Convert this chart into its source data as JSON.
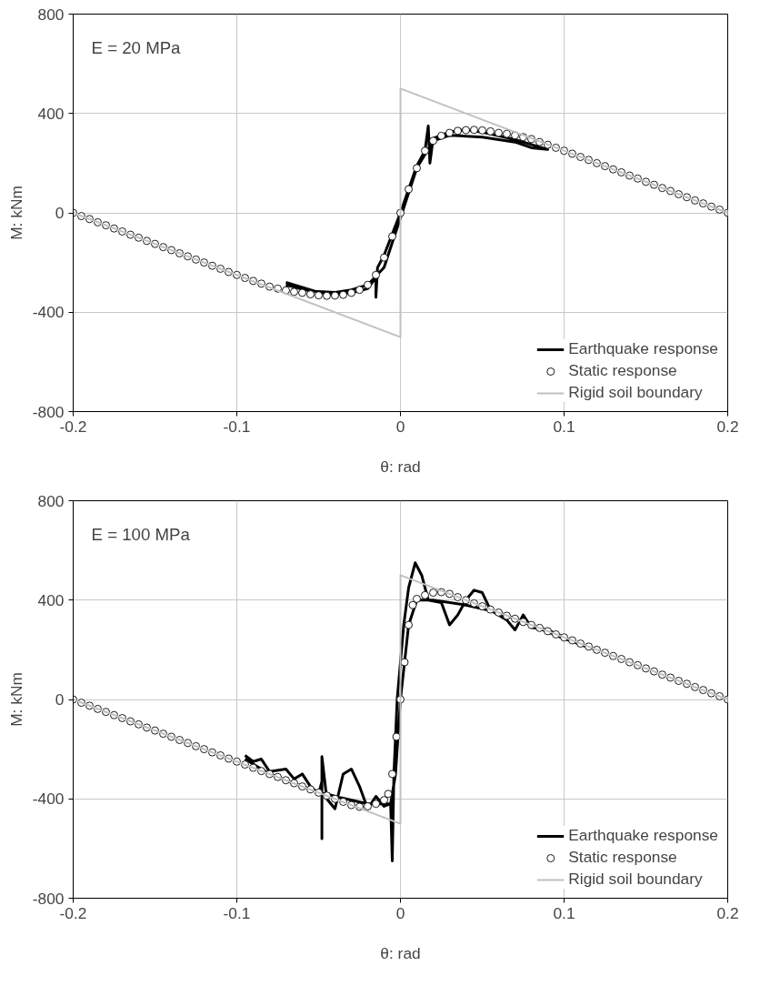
{
  "chart_data": [
    {
      "type": "line",
      "xlabel": "θ: rad",
      "ylabel": "M: kNm",
      "annotations": [
        "E = 20 MPa"
      ],
      "xlim": [
        -0.2,
        0.2
      ],
      "xticks": [
        -0.2,
        -0.1,
        0,
        0.1,
        0.2
      ],
      "ylim": [
        -800,
        800
      ],
      "yticks": [
        -800,
        -400,
        0,
        400,
        800
      ],
      "grid": true,
      "legend": "bottom right",
      "series": [
        {
          "name": "Earthquake response",
          "color": "#000000",
          "x": [
            -0.07,
            -0.065,
            -0.06,
            -0.05,
            -0.04,
            -0.03,
            -0.02,
            -0.015,
            -0.015,
            -0.014,
            -0.01,
            0,
            0.01,
            0.015,
            0.017,
            0.018,
            0.02,
            0.03,
            0.04,
            0.05,
            0.06,
            0.07,
            0.08,
            0.09,
            0.08,
            0.07,
            0.05,
            0.03,
            0.02,
            0.01,
            0,
            -0.01,
            -0.02,
            -0.03,
            -0.04,
            -0.055,
            -0.07
          ],
          "values": [
            -280,
            -290,
            -300,
            -320,
            -330,
            -322,
            -305,
            -260,
            -340,
            -220,
            -170,
            0,
            190,
            250,
            350,
            200,
            300,
            325,
            335,
            325,
            310,
            295,
            275,
            255,
            262,
            285,
            305,
            312,
            290,
            180,
            -20,
            -220,
            -290,
            -310,
            -320,
            -315,
            -290
          ]
        },
        {
          "name": "Static response",
          "type": "scatter",
          "marker": "circle",
          "color": "#000000",
          "x": [
            -0.2,
            -0.195,
            -0.19,
            -0.185,
            -0.18,
            -0.175,
            -0.17,
            -0.165,
            -0.16,
            -0.155,
            -0.15,
            -0.145,
            -0.14,
            -0.135,
            -0.13,
            -0.125,
            -0.12,
            -0.115,
            -0.11,
            -0.105,
            -0.1,
            -0.095,
            -0.09,
            -0.085,
            -0.08,
            -0.075,
            -0.07,
            -0.065,
            -0.06,
            -0.055,
            -0.05,
            -0.045,
            -0.04,
            -0.035,
            -0.03,
            -0.025,
            -0.02,
            -0.015,
            -0.01,
            -0.005,
            0,
            0.005,
            0.01,
            0.015,
            0.02,
            0.025,
            0.03,
            0.035,
            0.04,
            0.045,
            0.05,
            0.055,
            0.06,
            0.065,
            0.07,
            0.075,
            0.08,
            0.085,
            0.09,
            0.095,
            0.1,
            0.105,
            0.11,
            0.115,
            0.12,
            0.125,
            0.13,
            0.135,
            0.14,
            0.145,
            0.15,
            0.155,
            0.16,
            0.165,
            0.17,
            0.175,
            0.18,
            0.185,
            0.19,
            0.195,
            0.2
          ],
          "values": [
            0,
            -13,
            -25,
            -38,
            -50,
            -63,
            -75,
            -88,
            -100,
            -113,
            -125,
            -138,
            -150,
            -163,
            -175,
            -188,
            -200,
            -213,
            -225,
            -238,
            -250,
            -262,
            -274,
            -285,
            -297,
            -305,
            -312,
            -318,
            -322,
            -328,
            -332,
            -334,
            -333,
            -330,
            -322,
            -310,
            -290,
            -250,
            -180,
            -95,
            0,
            95,
            180,
            250,
            290,
            310,
            322,
            330,
            333,
            334,
            332,
            328,
            322,
            318,
            312,
            305,
            297,
            285,
            274,
            262,
            250,
            238,
            225,
            213,
            200,
            188,
            175,
            163,
            150,
            138,
            125,
            113,
            100,
            88,
            75,
            63,
            50,
            38,
            25,
            13,
            0
          ]
        },
        {
          "name": "Rigid soil boundary",
          "color": "#c0c0c0",
          "x": [
            -0.2,
            0,
            0,
            0.2
          ],
          "values": [
            0,
            -500,
            500,
            0
          ]
        }
      ]
    },
    {
      "type": "line",
      "xlabel": "θ: rad",
      "ylabel": "M: kNm",
      "annotations": [
        "E = 100 MPa"
      ],
      "xlim": [
        -0.2,
        0.2
      ],
      "xticks": [
        -0.2,
        -0.1,
        0,
        0.1,
        0.2
      ],
      "ylim": [
        -800,
        800
      ],
      "yticks": [
        -800,
        -400,
        0,
        400,
        800
      ],
      "grid": true,
      "legend": "bottom right",
      "series": [
        {
          "name": "Earthquake response",
          "color": "#000000",
          "x": [
            -0.095,
            -0.09,
            -0.085,
            -0.08,
            -0.07,
            -0.065,
            -0.06,
            -0.055,
            -0.05,
            -0.048,
            -0.048,
            -0.048,
            -0.045,
            -0.04,
            -0.035,
            -0.03,
            -0.025,
            -0.02,
            -0.015,
            -0.01,
            -0.006,
            -0.005,
            -0.004,
            -0.002,
            0.002,
            0.005,
            0.009,
            0.013,
            0.017,
            0.025,
            0.03,
            0.035,
            0.04,
            0.045,
            0.05,
            0.055,
            0.06,
            0.065,
            0.07,
            0.075,
            0.08,
            0.09,
            0.1,
            0.11,
            0.12,
            0.1,
            0.08,
            0.06,
            0.04,
            0.02,
            0.01,
            0.005,
            0,
            -0.003,
            -0.006,
            -0.02,
            -0.04,
            -0.06,
            -0.08,
            -0.095
          ],
          "values": [
            -225,
            -250,
            -240,
            -290,
            -280,
            -320,
            -300,
            -350,
            -380,
            -330,
            -560,
            -230,
            -400,
            -440,
            -300,
            -280,
            -350,
            -440,
            -390,
            -430,
            -420,
            -650,
            -300,
            0,
            300,
            450,
            550,
            500,
            400,
            390,
            300,
            340,
            400,
            440,
            430,
            360,
            340,
            320,
            280,
            340,
            290,
            280,
            250,
            220,
            200,
            245,
            300,
            350,
            380,
            400,
            400,
            300,
            0,
            -300,
            -420,
            -420,
            -390,
            -350,
            -300,
            -240
          ]
        },
        {
          "name": "Static response",
          "type": "scatter",
          "marker": "circle",
          "color": "#000000",
          "x": [
            -0.2,
            -0.195,
            -0.19,
            -0.185,
            -0.18,
            -0.175,
            -0.17,
            -0.165,
            -0.16,
            -0.155,
            -0.15,
            -0.145,
            -0.14,
            -0.135,
            -0.13,
            -0.125,
            -0.12,
            -0.115,
            -0.11,
            -0.105,
            -0.1,
            -0.095,
            -0.09,
            -0.085,
            -0.08,
            -0.075,
            -0.07,
            -0.065,
            -0.06,
            -0.055,
            -0.05,
            -0.045,
            -0.04,
            -0.035,
            -0.03,
            -0.025,
            -0.02,
            -0.015,
            -0.01,
            -0.0075,
            -0.005,
            -0.0025,
            0,
            0.0025,
            0.005,
            0.0075,
            0.01,
            0.015,
            0.02,
            0.025,
            0.03,
            0.035,
            0.04,
            0.045,
            0.05,
            0.055,
            0.06,
            0.065,
            0.07,
            0.075,
            0.08,
            0.085,
            0.09,
            0.095,
            0.1,
            0.105,
            0.11,
            0.115,
            0.12,
            0.125,
            0.13,
            0.135,
            0.14,
            0.145,
            0.15,
            0.155,
            0.16,
            0.165,
            0.17,
            0.175,
            0.18,
            0.185,
            0.19,
            0.195,
            0.2
          ],
          "values": [
            0,
            -13,
            -25,
            -38,
            -50,
            -63,
            -75,
            -88,
            -100,
            -113,
            -125,
            -138,
            -150,
            -163,
            -175,
            -188,
            -200,
            -213,
            -225,
            -238,
            -250,
            -262,
            -275,
            -288,
            -300,
            -312,
            -325,
            -337,
            -350,
            -362,
            -375,
            -387,
            -400,
            -412,
            -425,
            -432,
            -430,
            -420,
            -405,
            -380,
            -300,
            -150,
            0,
            150,
            300,
            380,
            405,
            420,
            430,
            432,
            425,
            412,
            400,
            387,
            375,
            362,
            350,
            337,
            325,
            312,
            300,
            288,
            275,
            262,
            250,
            238,
            225,
            213,
            200,
            188,
            175,
            163,
            150,
            138,
            125,
            113,
            100,
            88,
            75,
            63,
            50,
            38,
            25,
            13,
            0
          ]
        },
        {
          "name": "Rigid soil boundary",
          "color": "#c0c0c0",
          "x": [
            -0.2,
            0,
            0,
            0.2
          ],
          "values": [
            0,
            -500,
            500,
            0
          ]
        }
      ]
    }
  ]
}
